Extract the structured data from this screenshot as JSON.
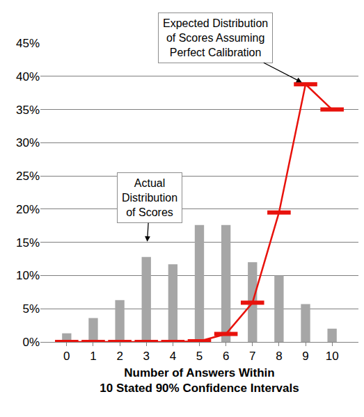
{
  "chart_data": {
    "type": "bar",
    "x_label": "Number of Answers Within\n10 Stated 90% Confidence Intervals",
    "categories": [
      "0",
      "1",
      "2",
      "3",
      "4",
      "5",
      "6",
      "7",
      "8",
      "9",
      "10"
    ],
    "series": [
      {
        "name": "Actual\nDistribution\nof Scores",
        "type": "bar",
        "color": "#a6a6a6",
        "values": [
          1.3,
          3.6,
          6.3,
          12.8,
          11.7,
          17.6,
          17.6,
          12.0,
          10.0,
          5.7,
          2.0
        ]
      },
      {
        "name": "Expected Distribution\nof Scores Assuming\nPerfect Calibration",
        "type": "line",
        "color": "#e8120c",
        "marker": "line-ew",
        "values": [
          0,
          0,
          0,
          0,
          0,
          0.1,
          1.2,
          5.9,
          19.5,
          38.8,
          35.0
        ]
      }
    ],
    "ylim": [
      0,
      45
    ],
    "yticks": [
      {
        "value": 0,
        "label": "0%"
      },
      {
        "value": 5,
        "label": "5%"
      },
      {
        "value": 10,
        "label": "10%"
      },
      {
        "value": 15,
        "label": "15%"
      },
      {
        "value": 20,
        "label": "20%"
      },
      {
        "value": 25,
        "label": "25%"
      },
      {
        "value": 30,
        "label": "30%"
      },
      {
        "value": 35,
        "label": "35%"
      },
      {
        "value": 40,
        "label": "40%"
      },
      {
        "value": 45,
        "label": "45%"
      }
    ],
    "grid": true
  }
}
